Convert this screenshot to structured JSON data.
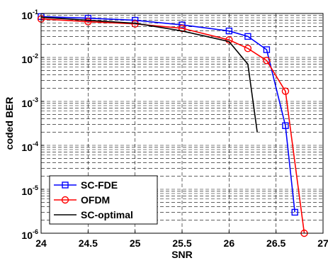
{
  "chart_data": {
    "type": "line",
    "xlabel": "SNR",
    "ylabel": "coded BER",
    "xlim": [
      24,
      27
    ],
    "ylim": [
      1e-06,
      0.1
    ],
    "yscale": "log",
    "grid": true,
    "legend_position": "bottom-left",
    "x_ticks": [
      "24",
      "24.5",
      "25",
      "25.5",
      "26",
      "26.5",
      "27"
    ],
    "y_ticks": [
      {
        "base": "10",
        "exp": "-1",
        "value": 0.1
      },
      {
        "base": "10",
        "exp": "-2",
        "value": 0.01
      },
      {
        "base": "10",
        "exp": "-3",
        "value": 0.001
      },
      {
        "base": "10",
        "exp": "-4",
        "value": 0.0001
      },
      {
        "base": "10",
        "exp": "-5",
        "value": 1e-05
      },
      {
        "base": "10",
        "exp": "-6",
        "value": 1e-06
      }
    ],
    "series": [
      {
        "name": "SC-FDE",
        "color": "#0000ff",
        "marker": "square",
        "x": [
          24,
          24.5,
          25,
          25.5,
          26,
          26.2,
          26.4,
          26.6,
          26.7
        ],
        "y": [
          0.085,
          0.078,
          0.07,
          0.055,
          0.04,
          0.03,
          0.015,
          0.00028,
          3e-06
        ]
      },
      {
        "name": "OFDM",
        "color": "#ff0000",
        "marker": "circle",
        "x": [
          24,
          24.5,
          25,
          25.5,
          26,
          26.2,
          26.4,
          26.6,
          26.8
        ],
        "y": [
          0.075,
          0.065,
          0.058,
          0.046,
          0.025,
          0.016,
          0.0085,
          0.0017,
          1e-06
        ]
      },
      {
        "name": "SC-optimal",
        "color": "#000000",
        "marker": "none",
        "x": [
          24,
          24.5,
          25,
          25.5,
          26,
          26.2,
          26.3
        ],
        "y": [
          0.082,
          0.07,
          0.06,
          0.04,
          0.023,
          0.007,
          0.0002
        ]
      }
    ]
  }
}
